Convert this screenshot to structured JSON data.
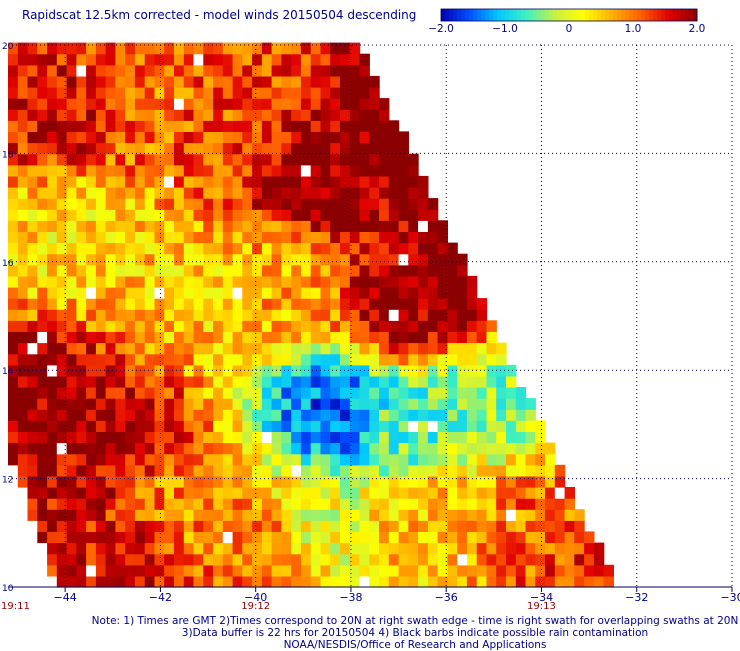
{
  "title": "Rapidscat 12.5km corrected - model winds 20150504 descending",
  "colorbar": {
    "ticks": [
      {
        "value": -2.0,
        "label": "−2.0"
      },
      {
        "value": -1.0,
        "label": "−1.0"
      },
      {
        "value": 0,
        "label": "0"
      },
      {
        "value": 1.0,
        "label": "1.0"
      },
      {
        "value": 2.0,
        "label": "2.0"
      }
    ],
    "range": [
      -2.0,
      2.0
    ],
    "colors": [
      "#0000b0",
      "#0050ff",
      "#00c8ff",
      "#40f0c0",
      "#c8f040",
      "#ffff00",
      "#ffb000",
      "#ff6000",
      "#e00000",
      "#8b0000"
    ]
  },
  "chart_data": {
    "type": "heatmap",
    "title": "Rapidscat 12.5km corrected - model winds 20150504 descending",
    "xlim": [
      -45.2,
      -30
    ],
    "ylim": [
      10,
      20
    ],
    "x_ticks": [
      {
        "value": -44,
        "label": "−44"
      },
      {
        "value": -42,
        "label": "−42"
      },
      {
        "value": -40,
        "label": "−40"
      },
      {
        "value": -38,
        "label": "−38"
      },
      {
        "value": -36,
        "label": "−36"
      },
      {
        "value": -34,
        "label": "−34"
      },
      {
        "value": -32,
        "label": "−32"
      },
      {
        "value": -30,
        "label": "−30"
      }
    ],
    "y_ticks": [
      {
        "value": 20,
        "label": "20"
      },
      {
        "value": 18,
        "label": "18"
      },
      {
        "value": 16,
        "label": "16"
      },
      {
        "value": 14,
        "label": "14"
      },
      {
        "value": 12,
        "label": "12"
      },
      {
        "value": 10,
        "label": "10"
      }
    ],
    "time_labels": [
      {
        "lon": -45.2,
        "label": "19:11"
      },
      {
        "lon": -40,
        "label": "19:12"
      },
      {
        "lon": -34,
        "label": "19:13"
      }
    ],
    "grid": true,
    "swath_right_edge": [
      [
        -37.8,
        20
      ],
      [
        -32.4,
        10
      ]
    ],
    "swath_left_edge": [
      [
        -45.2,
        20
      ],
      [
        -45.2,
        12.6
      ],
      [
        -44.2,
        10
      ]
    ],
    "colorscale_range": [
      -2.0,
      2.0
    ],
    "regions": [
      {
        "lon": -44.0,
        "lat": 18.8,
        "value": 1.6
      },
      {
        "lon": -42.5,
        "lat": 19.0,
        "value": 1.0
      },
      {
        "lon": -40.5,
        "lat": 18.6,
        "value": 1.2
      },
      {
        "lon": -38.6,
        "lat": 17.6,
        "value": 2.0
      },
      {
        "lon": -36.8,
        "lat": 15.2,
        "value": 1.9
      },
      {
        "lon": -44.4,
        "lat": 13.2,
        "value": 1.9
      },
      {
        "lon": -43.0,
        "lat": 12.6,
        "value": 1.7
      },
      {
        "lon": -41.5,
        "lat": 15.6,
        "value": 0.5
      },
      {
        "lon": -43.8,
        "lat": 16.6,
        "value": 0.4
      },
      {
        "lon": -39.5,
        "lat": 15.6,
        "value": 0.7
      },
      {
        "lon": -38.3,
        "lat": 13.2,
        "value": -1.4
      },
      {
        "lon": -37.0,
        "lat": 13.0,
        "value": -0.6
      },
      {
        "lon": -35.2,
        "lat": 13.4,
        "value": -0.4
      },
      {
        "lon": -38.6,
        "lat": 11.0,
        "value": 0.1
      },
      {
        "lon": -36.5,
        "lat": 11.2,
        "value": 0.6
      },
      {
        "lon": -34.2,
        "lat": 11.2,
        "value": 1.0
      },
      {
        "lon": -33.0,
        "lat": 10.4,
        "value": 1.3
      },
      {
        "lon": -41.5,
        "lat": 11.6,
        "value": 0.9
      },
      {
        "lon": -43.0,
        "lat": 10.4,
        "value": 1.6
      },
      {
        "lon": -39.8,
        "lat": 10.6,
        "value": 1.0
      }
    ]
  },
  "notes": {
    "line1": "Note: 1) Times are GMT 2)Times correspond to 20N at right swath edge - time is right swath for overlapping swaths at 20N",
    "line2": "3)Data buffer is 22 hrs for 20150504 4) Black barbs indicate possible rain contamination",
    "line3": "NOAA/NESDIS/Office of Research and Applications"
  }
}
